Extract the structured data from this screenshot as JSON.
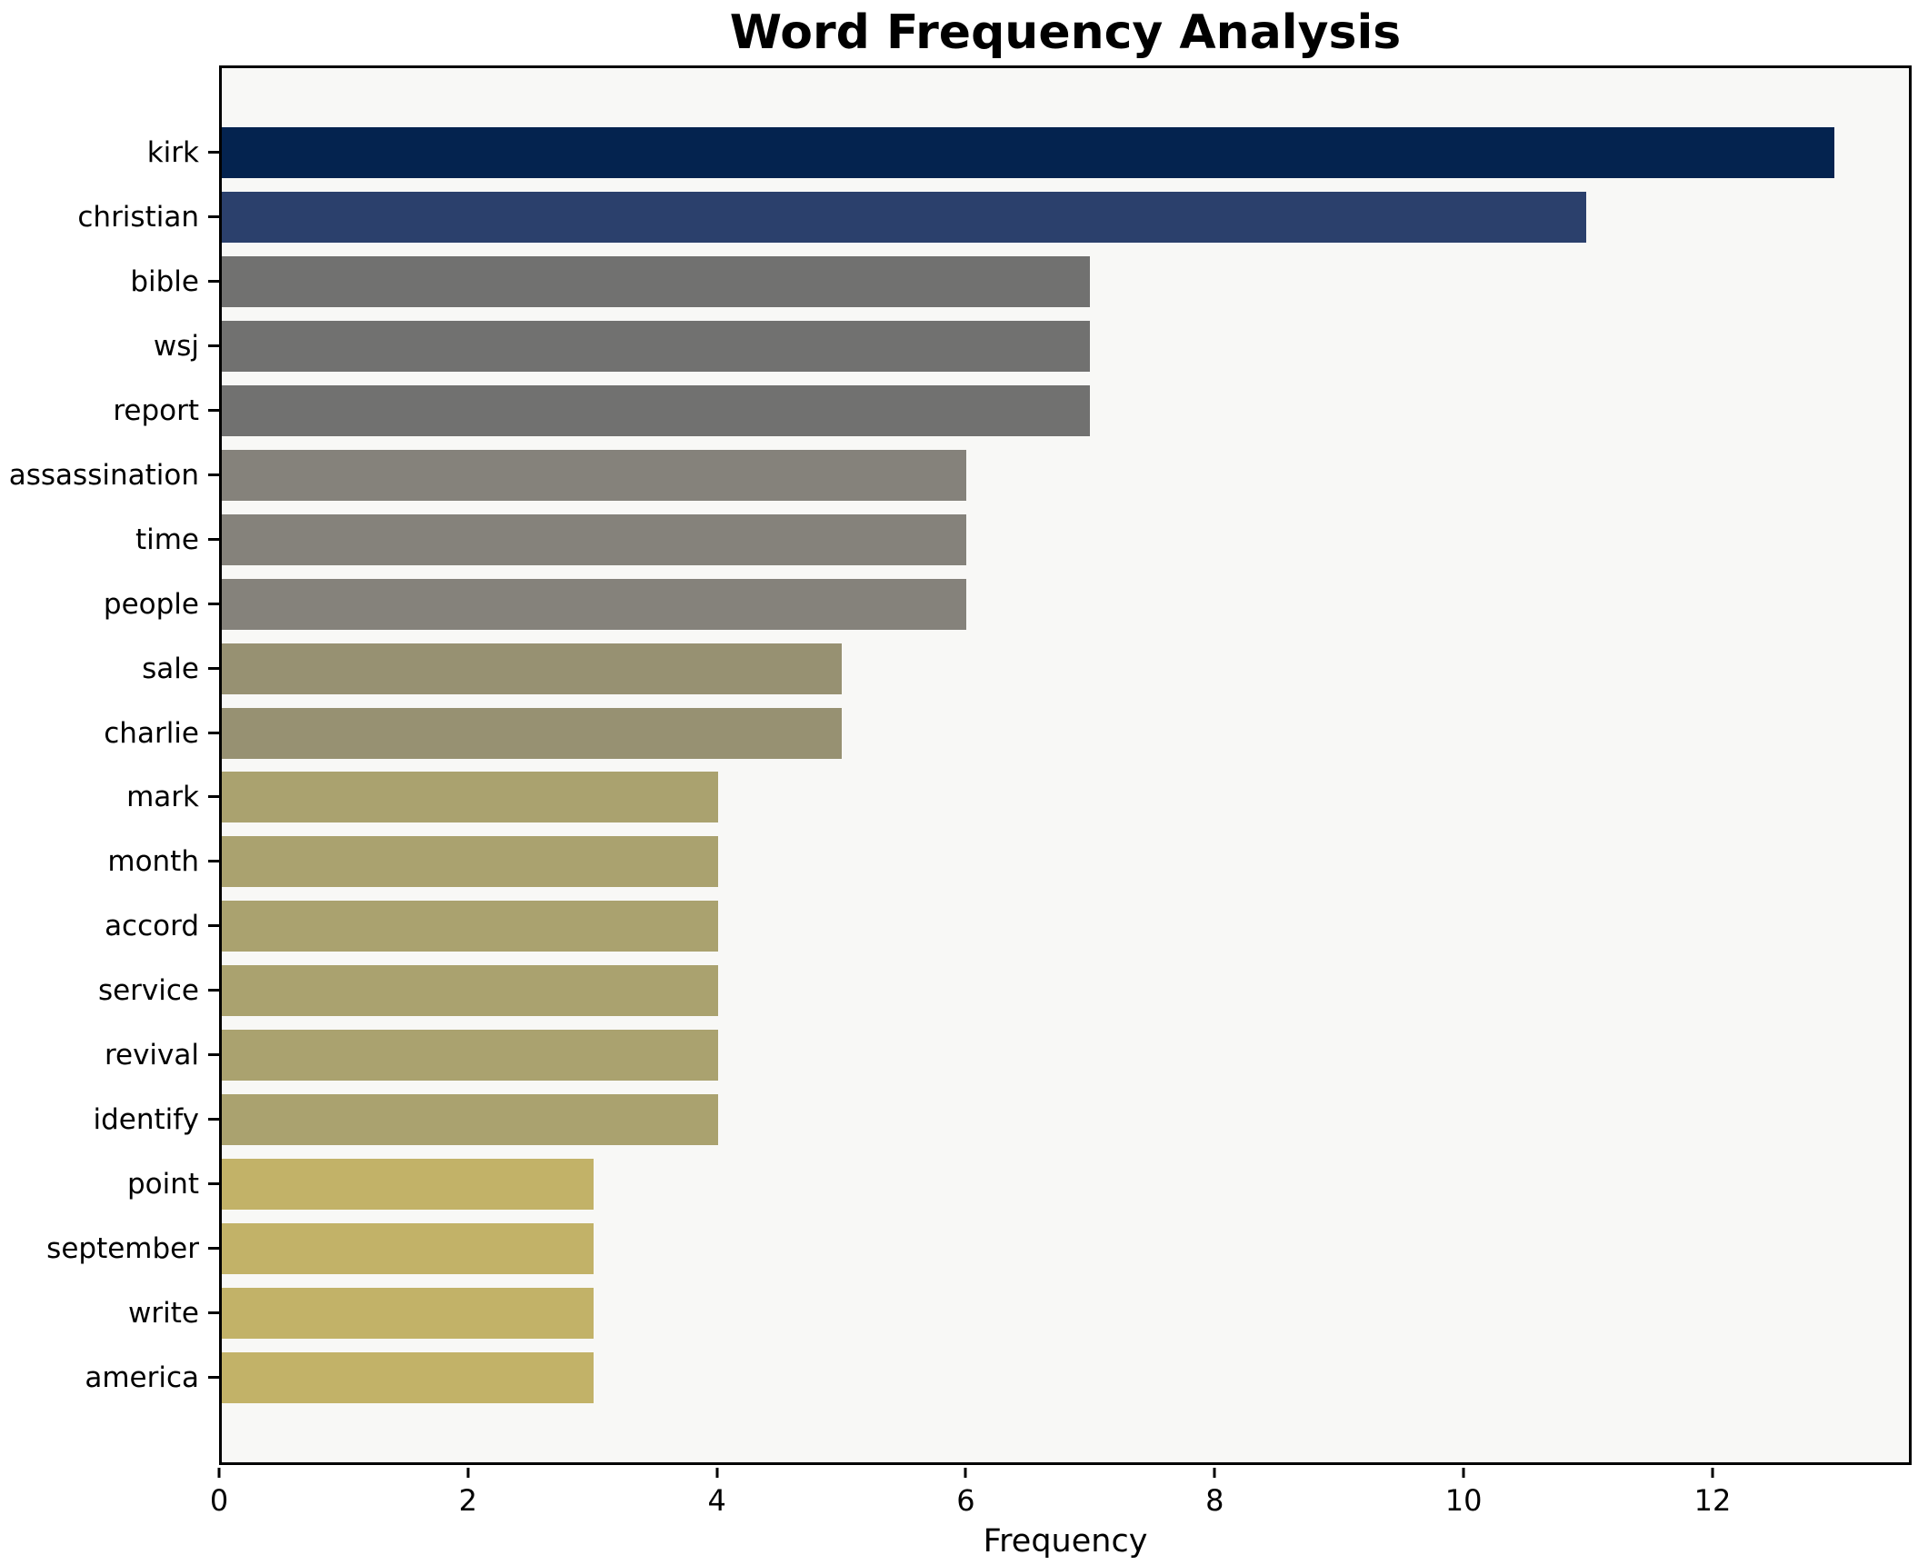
{
  "chart_data": {
    "type": "bar",
    "orientation": "horizontal",
    "title": "Word Frequency Analysis",
    "xlabel": "Frequency",
    "ylabel": "",
    "xlim": [
      0,
      13.6
    ],
    "x_ticks": [
      0,
      2,
      4,
      6,
      8,
      10,
      12
    ],
    "grid": false,
    "legend": "none",
    "categories": [
      "kirk",
      "christian",
      "bible",
      "wsj",
      "report",
      "assassination",
      "time",
      "people",
      "sale",
      "charlie",
      "mark",
      "month",
      "accord",
      "service",
      "revival",
      "identify",
      "point",
      "september",
      "write",
      "america"
    ],
    "values": [
      13,
      11,
      7,
      7,
      7,
      6,
      6,
      6,
      5,
      5,
      4,
      4,
      4,
      4,
      4,
      4,
      3,
      3,
      3,
      3
    ],
    "bar_colors": [
      "#04234f",
      "#2b406c",
      "#717170",
      "#717170",
      "#717170",
      "#85827b",
      "#85827b",
      "#85827b",
      "#979172",
      "#979172",
      "#aaa26f",
      "#aaa26f",
      "#aaa26f",
      "#aaa26f",
      "#aaa26f",
      "#aaa26f",
      "#c2b268",
      "#c2b268",
      "#c2b268",
      "#c2b268"
    ]
  },
  "colors": {
    "figure_bg": "#ffffff",
    "plot_bg": "#f8f8f6",
    "spine": "#000000",
    "text": "#000000"
  }
}
